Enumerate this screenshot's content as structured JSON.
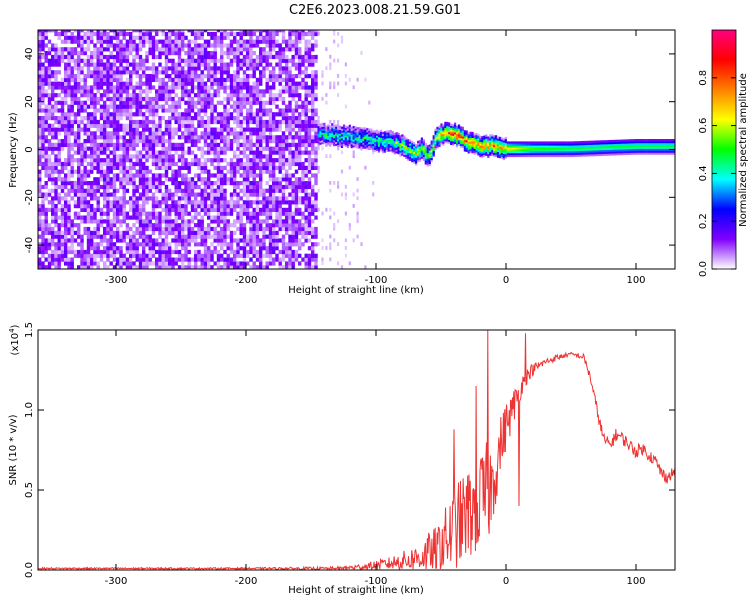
{
  "title": "C2E6.2023.008.21.59.G01",
  "chart_data": [
    {
      "type": "heatmap",
      "xlabel": "Height of straight line (km)",
      "ylabel": "Frequency (Hz)",
      "xlim": [
        -360,
        130
      ],
      "ylim": [
        -50,
        50
      ],
      "xticks": [
        -300,
        -200,
        -100,
        0,
        100
      ],
      "yticks": [
        -40,
        -20,
        0,
        20,
        40
      ],
      "colorbar": {
        "label": "Normalized spectral amplitude",
        "range": [
          0,
          1
        ],
        "ticks": [
          "0.0",
          "0.2",
          "0.4",
          "0.6",
          "0.8"
        ],
        "colormap": [
          "#ffffff",
          "#8000ff",
          "#0000ff",
          "#00ffff",
          "#00ff00",
          "#ffff00",
          "#ff8000",
          "#ff0000",
          "#ff0080"
        ]
      },
      "noise_region_end": -145,
      "signal_trace": {
        "x": [
          -145,
          -120,
          -100,
          -90,
          -80,
          -70,
          -65,
          -60,
          -55,
          -50,
          -45,
          -40,
          -30,
          -20,
          -10,
          0,
          20,
          50,
          100,
          130
        ],
        "frequency": [
          6,
          5,
          3,
          3,
          1,
          -2,
          0,
          -4,
          4,
          6,
          7,
          6,
          3,
          1,
          1,
          0,
          0,
          0,
          1,
          1
        ],
        "amplitude": [
          0.4,
          0.4,
          0.45,
          0.5,
          0.55,
          0.6,
          0.6,
          0.55,
          0.6,
          0.7,
          0.8,
          0.85,
          0.8,
          0.75,
          0.75,
          0.7,
          0.55,
          0.5,
          0.5,
          0.5
        ]
      }
    },
    {
      "type": "line",
      "xlabel": "Height of straight line (km)",
      "ylabel": "SNR (10 * v/v)",
      "scale_label": "(x10",
      "scale_exp": "4",
      "scale_close": ")",
      "xlim": [
        -360,
        130
      ],
      "ylim": [
        0,
        1.5
      ],
      "xticks": [
        -300,
        -200,
        -100,
        0,
        100
      ],
      "yticks": [
        "0.0",
        "0.5",
        "1.0",
        "1.5"
      ],
      "color": "#ee3333",
      "envelope": {
        "x": [
          -360,
          -200,
          -130,
          -110,
          -90,
          -70,
          -55,
          -45,
          -35,
          -25,
          -15,
          -10,
          -5,
          0,
          5,
          10,
          15,
          20,
          30,
          40,
          50,
          60,
          65,
          70,
          75,
          80,
          85,
          90,
          95,
          100,
          105,
          110,
          115,
          120,
          125,
          130
        ],
        "base": [
          0.01,
          0.01,
          0.01,
          0.02,
          0.04,
          0.07,
          0.12,
          0.2,
          0.3,
          0.38,
          0.45,
          0.55,
          0.75,
          0.9,
          1.0,
          1.12,
          1.2,
          1.25,
          1.3,
          1.33,
          1.35,
          1.33,
          1.2,
          1.0,
          0.82,
          0.78,
          0.85,
          0.82,
          0.78,
          0.74,
          0.76,
          0.72,
          0.68,
          0.6,
          0.58,
          0.62
        ],
        "amp": [
          0.005,
          0.005,
          0.01,
          0.02,
          0.04,
          0.08,
          0.15,
          0.22,
          0.28,
          0.3,
          0.35,
          0.25,
          0.2,
          0.15,
          0.12,
          0.08,
          0.05,
          0.04,
          0.02,
          0.02,
          0.01,
          0.02,
          0.03,
          0.04,
          0.04,
          0.04,
          0.04,
          0.04,
          0.04,
          0.04,
          0.04,
          0.04,
          0.04,
          0.04,
          0.04,
          0.04
        ]
      },
      "spikes": [
        {
          "x": -14,
          "y": 1.5
        },
        {
          "x": -23,
          "y": 1.15
        },
        {
          "x": -40,
          "y": 0.88
        },
        {
          "x": 15,
          "y": 1.48
        },
        {
          "x": 10,
          "y": 0.4
        }
      ]
    }
  ]
}
